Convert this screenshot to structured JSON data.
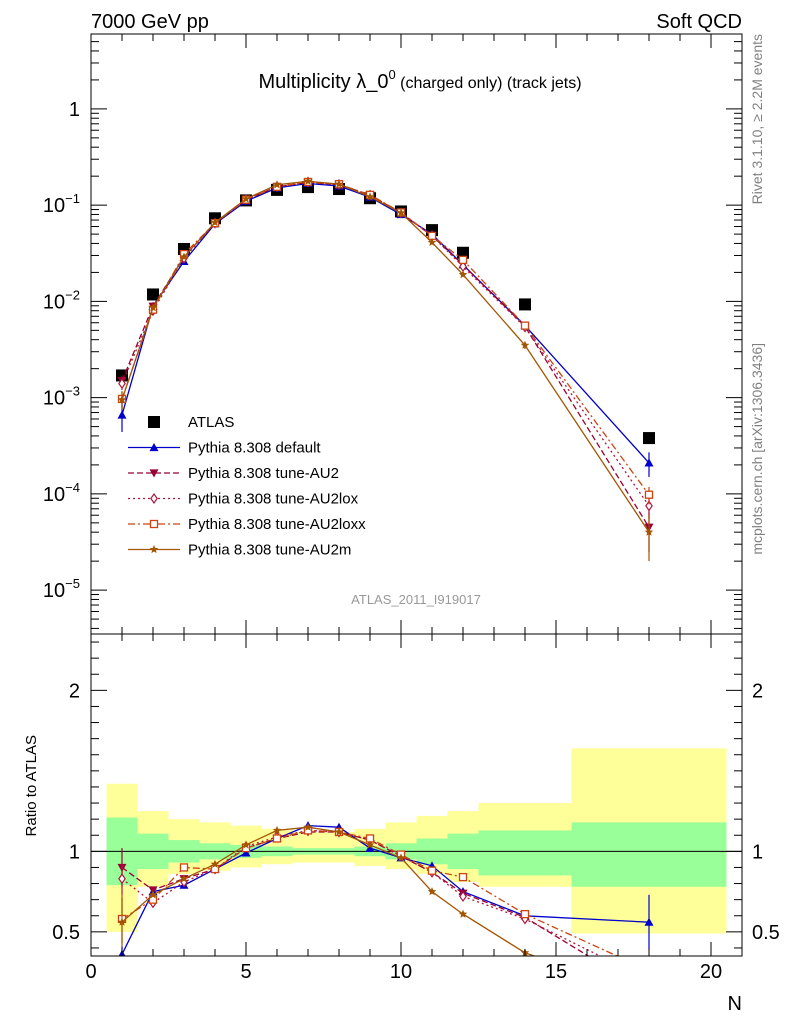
{
  "header": {
    "energy": "7000 GeV pp",
    "category": "Soft QCD"
  },
  "side_labels": {
    "rivet": "Rivet 3.1.10, ≥ 2.2M events",
    "mcplots": "mcplots.cern.ch [arXiv:1306.3436]"
  },
  "colors": {
    "ATLAS": "#000000",
    "default": "#0000cc",
    "au2": "#990033",
    "au2lox": "#b0163d",
    "au2loxx": "#cc4411",
    "au2m": "#a35500",
    "band_inner": "#99ff99",
    "band_outer": "#ffff99"
  },
  "chart_data": [
    {
      "type": "scatter",
      "panel": "main",
      "title": "Multiplicity λ_0",
      "title_superscript": "0",
      "title_suffix": " (charged only) (track jets)",
      "analysis_id": "ATLAS_2011_I919017",
      "xlabel": "",
      "ylabel": "",
      "xlim": [
        0,
        21
      ],
      "ylim": [
        3.5e-06,
        6
      ],
      "yscale": "log",
      "y_ticks": [
        {
          "value": 1e-05,
          "mantissa": "10",
          "exp": "−5"
        },
        {
          "value": 0.0001,
          "mantissa": "10",
          "exp": "−4"
        },
        {
          "value": 0.001,
          "mantissa": "10",
          "exp": "−3"
        },
        {
          "value": 0.01,
          "mantissa": "10",
          "exp": "−2"
        },
        {
          "value": 0.1,
          "mantissa": "10",
          "exp": "−1"
        },
        {
          "value": 1,
          "mantissa": "1",
          "exp": ""
        }
      ],
      "legend_position": "lower-left",
      "series": [
        {
          "name": "ATLAS",
          "key": "atlas",
          "marker": "square",
          "line": "none",
          "x": [
            1,
            2,
            3,
            4,
            5,
            6,
            7,
            8,
            9,
            10,
            11,
            12,
            14,
            18
          ],
          "y": [
            0.0017,
            0.0118,
            0.035,
            0.073,
            0.112,
            0.144,
            0.154,
            0.147,
            0.118,
            0.086,
            0.055,
            0.032,
            0.0093,
            0.00038
          ]
        },
        {
          "name": "Pythia 8.308 default",
          "key": "default",
          "marker": "triangle-up",
          "line": "solid",
          "x": [
            1,
            2,
            3,
            4,
            5,
            6,
            7,
            8,
            9,
            10,
            11,
            12,
            14,
            18
          ],
          "y": [
            0.00066,
            0.0089,
            0.026,
            0.064,
            0.11,
            0.151,
            0.168,
            0.158,
            0.121,
            0.08,
            0.05,
            0.024,
            0.0056,
            0.00021
          ],
          "yerr": [
            0.00022,
            0,
            0,
            0,
            0,
            0,
            0,
            0,
            0,
            0,
            0,
            0,
            0,
            6e-05
          ]
        },
        {
          "name": "Pythia 8.308 tune-AU2",
          "key": "au2",
          "marker": "triangle-down",
          "line": "dashed",
          "x": [
            1,
            2,
            3,
            4,
            5,
            6,
            7,
            8,
            9,
            10,
            11,
            12,
            14,
            18
          ],
          "y": [
            0.0015,
            0.0089,
            0.029,
            0.065,
            0.114,
            0.155,
            0.172,
            0.164,
            0.127,
            0.083,
            0.048,
            0.024,
            0.0055,
            4.5e-05
          ],
          "yerr": [
            0.0002,
            0,
            0,
            0,
            0,
            0,
            0,
            0,
            0,
            0,
            0,
            0,
            0,
            2e-05
          ]
        },
        {
          "name": "Pythia 8.308 tune-AU2lox",
          "key": "au2lox",
          "marker": "diamond-open",
          "line": "dotted",
          "x": [
            1,
            2,
            3,
            4,
            5,
            6,
            7,
            8,
            9,
            10,
            11,
            12,
            14,
            18
          ],
          "y": [
            0.0014,
            0.008,
            0.028,
            0.065,
            0.115,
            0.156,
            0.174,
            0.164,
            0.127,
            0.083,
            0.048,
            0.023,
            0.0054,
            7.5e-05
          ],
          "yerr": [
            0.0002,
            0,
            0,
            0,
            0,
            0,
            0,
            0,
            0,
            0,
            0,
            0,
            0,
            2e-05
          ]
        },
        {
          "name": "Pythia 8.308 tune-AU2loxx",
          "key": "au2loxx",
          "marker": "square-open",
          "line": "dashdot",
          "x": [
            1,
            2,
            3,
            4,
            5,
            6,
            7,
            8,
            9,
            10,
            11,
            12,
            14,
            18
          ],
          "y": [
            0.00097,
            0.0082,
            0.031,
            0.065,
            0.114,
            0.155,
            0.174,
            0.165,
            0.128,
            0.084,
            0.048,
            0.027,
            0.0056,
            9.8e-05
          ],
          "yerr": [
            0.0002,
            0,
            0,
            0,
            0,
            0,
            0,
            0,
            0,
            0,
            0,
            0,
            0,
            2e-05
          ]
        },
        {
          "name": "Pythia 8.308 tune-AU2m",
          "key": "au2m",
          "marker": "star",
          "line": "solid",
          "x": [
            1,
            2,
            3,
            4,
            5,
            6,
            7,
            8,
            9,
            10,
            11,
            12,
            14,
            18
          ],
          "y": [
            0.00095,
            0.0086,
            0.029,
            0.066,
            0.116,
            0.163,
            0.177,
            0.165,
            0.122,
            0.083,
            0.041,
            0.019,
            0.0035,
            4e-05
          ],
          "yerr": [
            0.0002,
            0,
            0,
            0,
            0,
            0,
            0,
            0,
            0,
            0,
            0,
            0,
            0.0003,
            2e-05
          ]
        }
      ]
    },
    {
      "type": "line",
      "panel": "ratio",
      "xlabel": "N",
      "ylabel": "Ratio to ATLAS",
      "xlim": [
        0,
        21
      ],
      "ylim": [
        0.35,
        2.35
      ],
      "x_ticks": [
        0,
        5,
        10,
        15,
        20
      ],
      "y_ticks": [
        0.5,
        1,
        2
      ],
      "bands": {
        "edges": [
          0.5,
          1.5,
          2.5,
          3.5,
          4.5,
          5.5,
          6.5,
          7.5,
          8.5,
          9.5,
          10.5,
          11.5,
          12.5,
          15.5,
          20.5
        ],
        "inner": [
          [
            0.79,
            1.21
          ],
          [
            0.89,
            1.11
          ],
          [
            0.93,
            1.07
          ],
          [
            0.95,
            1.05
          ],
          [
            0.96,
            1.04
          ],
          [
            0.97,
            1.03
          ],
          [
            0.98,
            1.02
          ],
          [
            0.98,
            1.02
          ],
          [
            0.97,
            1.03
          ],
          [
            0.95,
            1.05
          ],
          [
            0.92,
            1.08
          ],
          [
            0.89,
            1.11
          ],
          [
            0.85,
            1.13
          ],
          [
            0.78,
            1.18
          ]
        ],
        "outer": [
          [
            0.5,
            1.42
          ],
          [
            0.78,
            1.25
          ],
          [
            0.86,
            1.2
          ],
          [
            0.88,
            1.18
          ],
          [
            0.9,
            1.16
          ],
          [
            0.92,
            1.14
          ],
          [
            0.93,
            1.12
          ],
          [
            0.93,
            1.12
          ],
          [
            0.91,
            1.14
          ],
          [
            0.89,
            1.18
          ],
          [
            0.86,
            1.22
          ],
          [
            0.81,
            1.25
          ],
          [
            0.78,
            1.3
          ],
          [
            0.49,
            1.64
          ]
        ]
      },
      "series": [
        {
          "name": "Pythia 8.308 default",
          "key": "default",
          "x": [
            1,
            2,
            3,
            4,
            5,
            6,
            7,
            8,
            9,
            10,
            11,
            12,
            14,
            18
          ],
          "y": [
            0.36,
            0.75,
            0.79,
            0.89,
            0.99,
            1.08,
            1.16,
            1.15,
            1.02,
            0.96,
            0.91,
            0.75,
            0.6,
            0.56
          ],
          "yerr": [
            0.05,
            0,
            0,
            0,
            0,
            0,
            0,
            0,
            0,
            0,
            0,
            0,
            0,
            0.17
          ]
        },
        {
          "name": "Pythia 8.308 tune-AU2",
          "key": "au2",
          "x": [
            1,
            2,
            3,
            4,
            5,
            6,
            7,
            8,
            9,
            10,
            11,
            12,
            14,
            18
          ],
          "y": [
            0.9,
            0.76,
            0.83,
            0.89,
            1.02,
            1.08,
            1.12,
            1.12,
            1.07,
            0.97,
            0.87,
            0.74,
            0.59,
            0.12
          ],
          "yerr": [
            0.12,
            0,
            0,
            0,
            0,
            0,
            0,
            0,
            0,
            0,
            0,
            0,
            0,
            0
          ]
        },
        {
          "name": "Pythia 8.308 tune-AU2lox",
          "key": "au2lox",
          "x": [
            1,
            2,
            3,
            4,
            5,
            6,
            7,
            8,
            9,
            10,
            11,
            12,
            14,
            18
          ],
          "y": [
            0.83,
            0.68,
            0.81,
            0.89,
            1.03,
            1.09,
            1.13,
            1.12,
            1.07,
            0.97,
            0.87,
            0.72,
            0.58,
            0.2
          ],
          "yerr": [
            0.1,
            0,
            0,
            0,
            0,
            0,
            0,
            0,
            0,
            0,
            0,
            0,
            0,
            0
          ]
        },
        {
          "name": "Pythia 8.308 tune-AU2loxx",
          "key": "au2loxx",
          "x": [
            1,
            2,
            3,
            4,
            5,
            6,
            7,
            8,
            9,
            10,
            11,
            12,
            14,
            18
          ],
          "y": [
            0.58,
            0.7,
            0.9,
            0.89,
            1.02,
            1.08,
            1.13,
            1.12,
            1.08,
            0.98,
            0.88,
            0.84,
            0.61,
            0.26
          ],
          "yerr": [
            0.15,
            0,
            0,
            0,
            0,
            0,
            0,
            0,
            0,
            0,
            0,
            0,
            0,
            0
          ]
        },
        {
          "name": "Pythia 8.308 tune-AU2m",
          "key": "au2m",
          "x": [
            1,
            2,
            3,
            4,
            5,
            6,
            7,
            8,
            9,
            10,
            11,
            12,
            14,
            18
          ],
          "y": [
            0.56,
            0.73,
            0.83,
            0.92,
            1.04,
            1.13,
            1.15,
            1.12,
            1.04,
            0.96,
            0.75,
            0.61,
            0.37,
            0.1
          ],
          "yerr": [
            0.15,
            0,
            0,
            0,
            0,
            0,
            0,
            0,
            0,
            0,
            0,
            0,
            0,
            0
          ]
        }
      ]
    }
  ]
}
